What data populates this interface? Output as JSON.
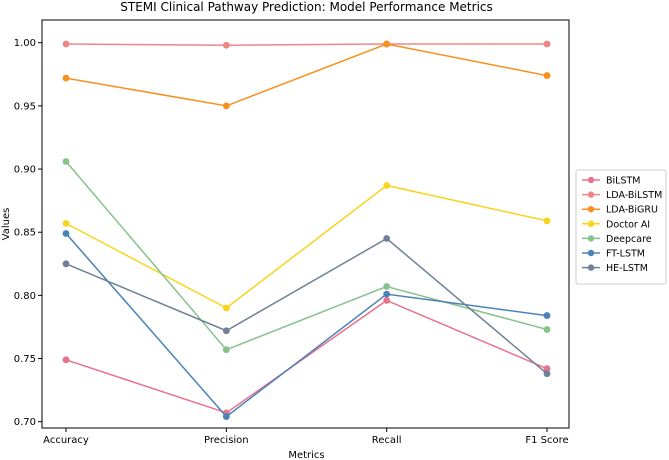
{
  "chart_data": {
    "type": "line",
    "title": "STEMI Clinical Pathway Prediction: Model Performance Metrics",
    "xlabel": "Metrics",
    "ylabel": "Values",
    "categories": [
      "Accuracy",
      "Precision",
      "Recall",
      "F1 Score"
    ],
    "ylim": [
      0.695,
      1.018
    ],
    "yticks": [
      0.7,
      0.75,
      0.8,
      0.85,
      0.9,
      0.95,
      1.0
    ],
    "ytick_labels": [
      "0.70",
      "0.75",
      "0.80",
      "0.85",
      "0.90",
      "0.95",
      "1.00"
    ],
    "grid": false,
    "legend_position": "right",
    "series": [
      {
        "name": "BiLSTM",
        "color": "#e8728e",
        "values": [
          0.749,
          0.707,
          0.796,
          0.742
        ]
      },
      {
        "name": "LDA-BiLSTM",
        "color": "#f08585",
        "values": [
          0.999,
          0.998,
          0.999,
          0.999
        ]
      },
      {
        "name": "LDA-BiGRU",
        "color": "#f7901e",
        "values": [
          0.972,
          0.95,
          0.999,
          0.974
        ]
      },
      {
        "name": "Doctor AI",
        "color": "#f9d41a",
        "values": [
          0.857,
          0.79,
          0.887,
          0.859
        ]
      },
      {
        "name": "Deepcare",
        "color": "#86c28b",
        "values": [
          0.906,
          0.757,
          0.807,
          0.773
        ]
      },
      {
        "name": "FT-LSTM",
        "color": "#4a83b8",
        "values": [
          0.849,
          0.704,
          0.801,
          0.784
        ]
      },
      {
        "name": "HE-LSTM",
        "color": "#6f8196",
        "values": [
          0.825,
          0.772,
          0.845,
          0.738
        ]
      }
    ]
  }
}
